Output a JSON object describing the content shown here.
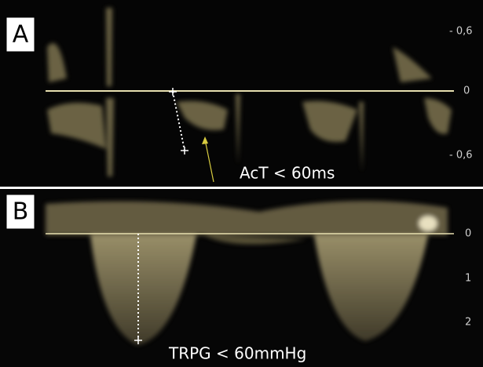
{
  "panels": [
    {
      "label": "A",
      "scale": [
        "- 0,6",
        "0",
        "- 0,6"
      ],
      "annotation": "AcT < 60ms"
    },
    {
      "label": "B",
      "scale": [
        "0",
        "1",
        "2"
      ],
      "annotation": "TRPG < 60mmHg"
    }
  ]
}
